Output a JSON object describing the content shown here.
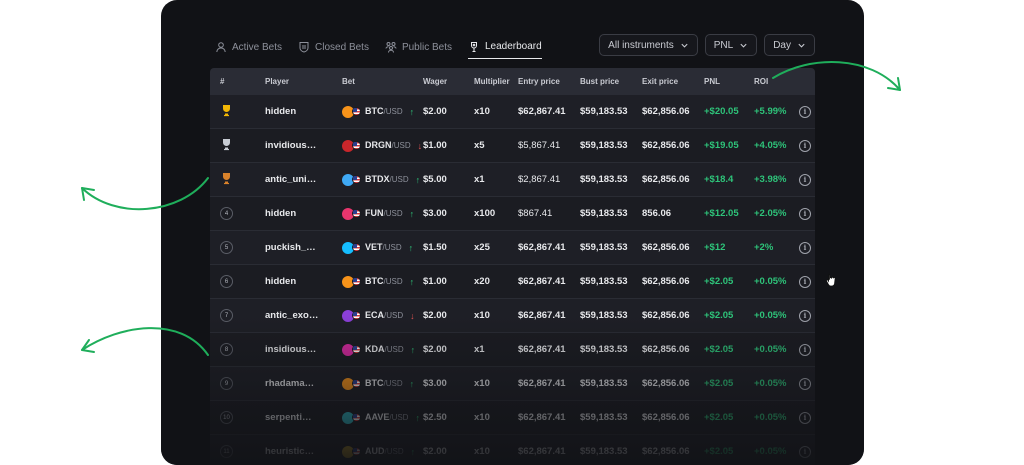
{
  "tabs": [
    {
      "label": "Active Bets",
      "icon": "user-icon"
    },
    {
      "label": "Closed Bets",
      "icon": "shield-icon"
    },
    {
      "label": "Public Bets",
      "icon": "users-icon"
    },
    {
      "label": "Leaderboard",
      "icon": "trophy-icon",
      "active": true
    }
  ],
  "filters": {
    "instruments": "All instruments",
    "metric": "PNL",
    "period": "Day"
  },
  "columns": [
    "#",
    "Player",
    "Bet",
    "Wager",
    "Multiplier",
    "Entry price",
    "Bust price",
    "Exit price",
    "PNL",
    "ROI"
  ],
  "rows": [
    {
      "rank": "1",
      "player": "hidden",
      "base": "BTC",
      "quote": "/USD",
      "dir": "up",
      "wager": "$2.00",
      "mult": "x10",
      "entry": "$62,867.41",
      "bust": "$59,183.53",
      "exit": "$62,856.06",
      "pnl": "+$20.05",
      "roi": "+5.99%"
    },
    {
      "rank": "2",
      "player": "invidious…",
      "base": "DRGN",
      "quote": "/USD",
      "dir": "down",
      "wager": "$1.00",
      "mult": "x5",
      "entry": "$5,867.41",
      "bust": "$59,183.53",
      "exit": "$62,856.06",
      "pnl": "+$19.05",
      "roi": "+4.05%"
    },
    {
      "rank": "3",
      "player": "antic_uni…",
      "base": "BTDX",
      "quote": "/USD",
      "dir": "up",
      "wager": "$5.00",
      "mult": "x1",
      "entry": "$2,867.41",
      "bust": "$59,183.53",
      "exit": "$62,856.06",
      "pnl": "+$18.4",
      "roi": "+3.98%"
    },
    {
      "rank": "4",
      "player": "hidden",
      "base": "FUN",
      "quote": "/USD",
      "dir": "up",
      "wager": "$3.00",
      "mult": "x100",
      "entry": "$867.41",
      "bust": "$59,183.53",
      "exit": "856.06",
      "pnl": "+$12.05",
      "roi": "+2.05%"
    },
    {
      "rank": "5",
      "player": "puckish_…",
      "base": "VET",
      "quote": "/USD",
      "dir": "up",
      "wager": "$1.50",
      "mult": "x25",
      "entry": "$62,867.41",
      "bust": "$59,183.53",
      "exit": "$62,856.06",
      "pnl": "+$12",
      "roi": "+2%"
    },
    {
      "rank": "6",
      "player": "hidden",
      "base": "BTC",
      "quote": "/USD",
      "dir": "up",
      "wager": "$1.00",
      "mult": "x20",
      "entry": "$62,867.41",
      "bust": "$59,183.53",
      "exit": "$62,856.06",
      "pnl": "+$2.05",
      "roi": "+0.05%"
    },
    {
      "rank": "7",
      "player": "antic_exo…",
      "base": "ECA",
      "quote": "/USD",
      "dir": "down",
      "wager": "$2.00",
      "mult": "x10",
      "entry": "$62,867.41",
      "bust": "$59,183.53",
      "exit": "$62,856.06",
      "pnl": "+$2.05",
      "roi": "+0.05%"
    },
    {
      "rank": "8",
      "player": "insidious…",
      "base": "KDA",
      "quote": "/USD",
      "dir": "up",
      "wager": "$2.00",
      "mult": "x1",
      "entry": "$62,867.41",
      "bust": "$59,183.53",
      "exit": "$62,856.06",
      "pnl": "+$2.05",
      "roi": "+0.05%"
    },
    {
      "rank": "9",
      "player": "rhadama…",
      "base": "BTC",
      "quote": "/USD",
      "dir": "up",
      "wager": "$3.00",
      "mult": "x10",
      "entry": "$62,867.41",
      "bust": "$59,183.53",
      "exit": "$62,856.06",
      "pnl": "+$2.05",
      "roi": "+0.05%"
    },
    {
      "rank": "10",
      "player": "serpenti…",
      "base": "AAVE",
      "quote": "/USD",
      "dir": "up",
      "wager": "$2.50",
      "mult": "x10",
      "entry": "$62,867.41",
      "bust": "$59,183.53",
      "exit": "$62,856.06",
      "pnl": "+$2.05",
      "roi": "+0.05%"
    },
    {
      "rank": "11",
      "player": "heuristic…",
      "base": "AUD",
      "quote": "/USD",
      "dir": "up",
      "wager": "$2.00",
      "mult": "x10",
      "entry": "$62,867.41",
      "bust": "$59,183.53",
      "exit": "$62,856.06",
      "pnl": "+$2.05",
      "roi": "+0.05%"
    }
  ],
  "colors": {
    "accent_green": "#2ec47a",
    "down_red": "#e05252",
    "panel_bg": "#111216",
    "header_bg": "#2a2c35",
    "arrow_green": "#1fae5b"
  }
}
